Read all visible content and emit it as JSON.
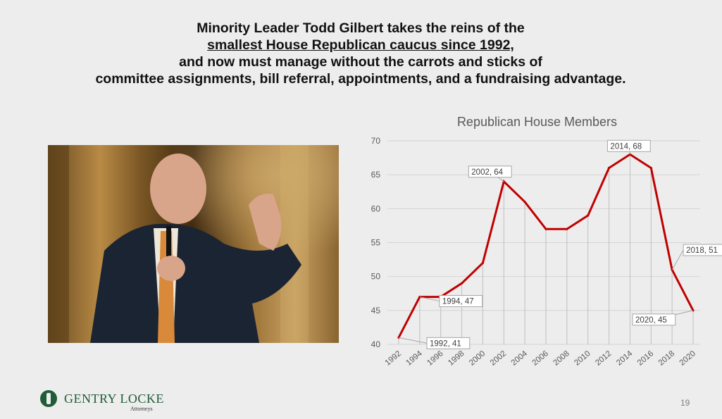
{
  "headline": {
    "line1": "Minority Leader Todd Gilbert takes the reins of the",
    "line2": "smallest House Republican caucus since 1992,",
    "line3": "and now must manage without the carrots and sticks of",
    "line4": "committee assignments, bill referral, appointments, and a fundraising advantage."
  },
  "chart_data": {
    "type": "line",
    "title": "Republican House Members",
    "xlabel": "",
    "ylabel": "",
    "x": [
      "1992",
      "1994",
      "1996",
      "1998",
      "2000",
      "2002",
      "2004",
      "2006",
      "2008",
      "2010",
      "2012",
      "2014",
      "2016",
      "2018",
      "2020"
    ],
    "values": [
      41,
      47,
      47,
      49,
      52,
      64,
      61,
      57,
      57,
      59,
      66,
      68,
      66,
      51,
      45
    ],
    "ylim": [
      40,
      70
    ],
    "yticks": [
      40,
      45,
      50,
      55,
      60,
      65,
      70
    ],
    "grid": "vertical drop lines at each data point",
    "line_color": "#c00000",
    "annotations": [
      {
        "year": "1992",
        "value": 41,
        "label": "1992, 41"
      },
      {
        "year": "1994",
        "value": 47,
        "label": "1994, 47"
      },
      {
        "year": "2002",
        "value": 64,
        "label": "2002, 64"
      },
      {
        "year": "2014",
        "value": 68,
        "label": "2014, 68"
      },
      {
        "year": "2018",
        "value": 51,
        "label": "2018, 51"
      },
      {
        "year": "2020",
        "value": 45,
        "label": "2020, 45"
      }
    ]
  },
  "logo": {
    "name": "GENTRY LOCKE",
    "subtitle": "Attorneys"
  },
  "page_number": "19"
}
